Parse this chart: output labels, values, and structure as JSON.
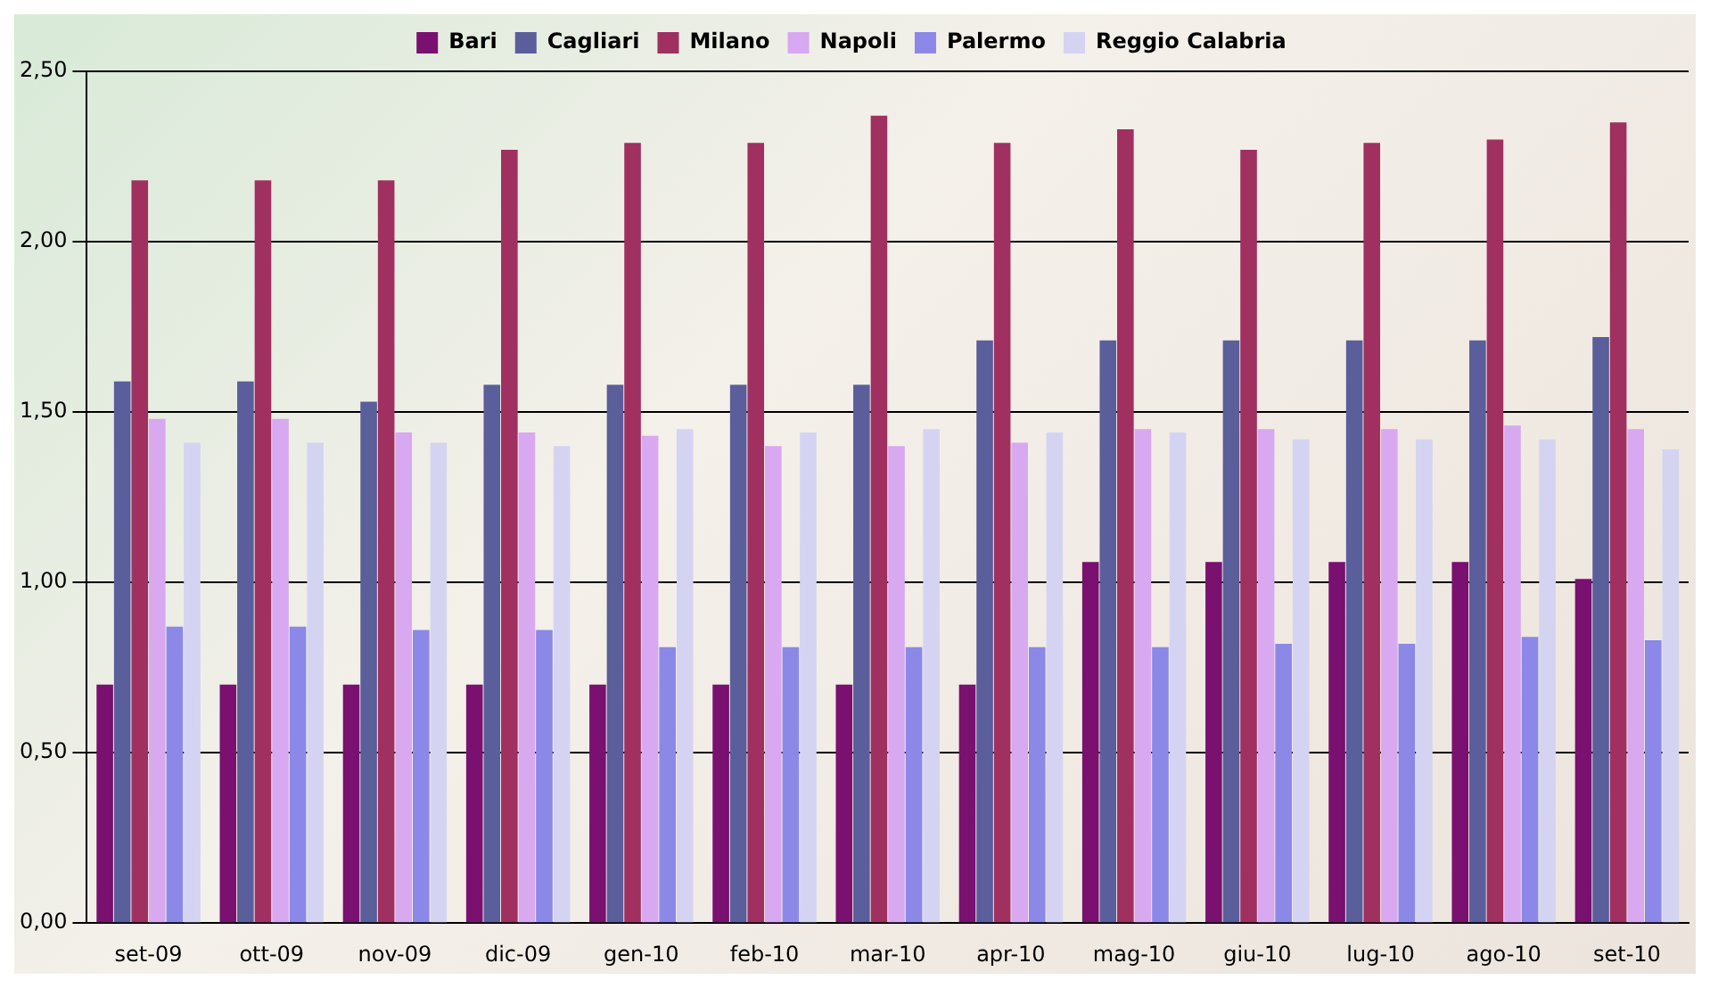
{
  "chart_data": {
    "type": "bar",
    "categories": [
      "set-09",
      "ott-09",
      "nov-09",
      "dic-09",
      "gen-10",
      "feb-10",
      "mar-10",
      "apr-10",
      "mag-10",
      "giu-10",
      "lug-10",
      "ago-10",
      "set-10"
    ],
    "series": [
      {
        "name": "Bari",
        "color": "#7a1070",
        "values": [
          0.7,
          0.7,
          0.7,
          0.7,
          0.7,
          0.7,
          0.7,
          0.7,
          1.06,
          1.06,
          1.06,
          1.06,
          1.01
        ]
      },
      {
        "name": "Cagliari",
        "color": "#5a5e9a",
        "values": [
          1.59,
          1.59,
          1.53,
          1.58,
          1.58,
          1.58,
          1.58,
          1.71,
          1.71,
          1.71,
          1.71,
          1.71,
          1.72
        ]
      },
      {
        "name": "Milano",
        "color": "#a03060",
        "values": [
          2.18,
          2.18,
          2.18,
          2.27,
          2.29,
          2.29,
          2.37,
          2.29,
          2.33,
          2.27,
          2.29,
          2.3,
          2.35
        ]
      },
      {
        "name": "Napoli",
        "color": "#d8a8f0",
        "values": [
          1.48,
          1.48,
          1.44,
          1.44,
          1.43,
          1.4,
          1.4,
          1.41,
          1.45,
          1.45,
          1.45,
          1.46,
          1.45
        ]
      },
      {
        "name": "Palermo",
        "color": "#8c88e8",
        "values": [
          0.87,
          0.87,
          0.86,
          0.86,
          0.81,
          0.81,
          0.81,
          0.81,
          0.81,
          0.82,
          0.82,
          0.84,
          0.83
        ]
      },
      {
        "name": "Reggio Calabria",
        "color": "#d4d4f2",
        "values": [
          1.41,
          1.41,
          1.41,
          1.4,
          1.45,
          1.44,
          1.45,
          1.44,
          1.44,
          1.42,
          1.42,
          1.42,
          1.39
        ]
      }
    ],
    "ylim": [
      0,
      2.5
    ],
    "yticks": [
      {
        "value": 0,
        "label": "0,00"
      },
      {
        "value": 0.5,
        "label": "0,50"
      },
      {
        "value": 1,
        "label": "1,00"
      },
      {
        "value": 1.5,
        "label": "1,50"
      },
      {
        "value": 2,
        "label": "2,00"
      },
      {
        "value": 2.5,
        "label": "2,50"
      }
    ],
    "grid": "y",
    "legend": "top"
  }
}
